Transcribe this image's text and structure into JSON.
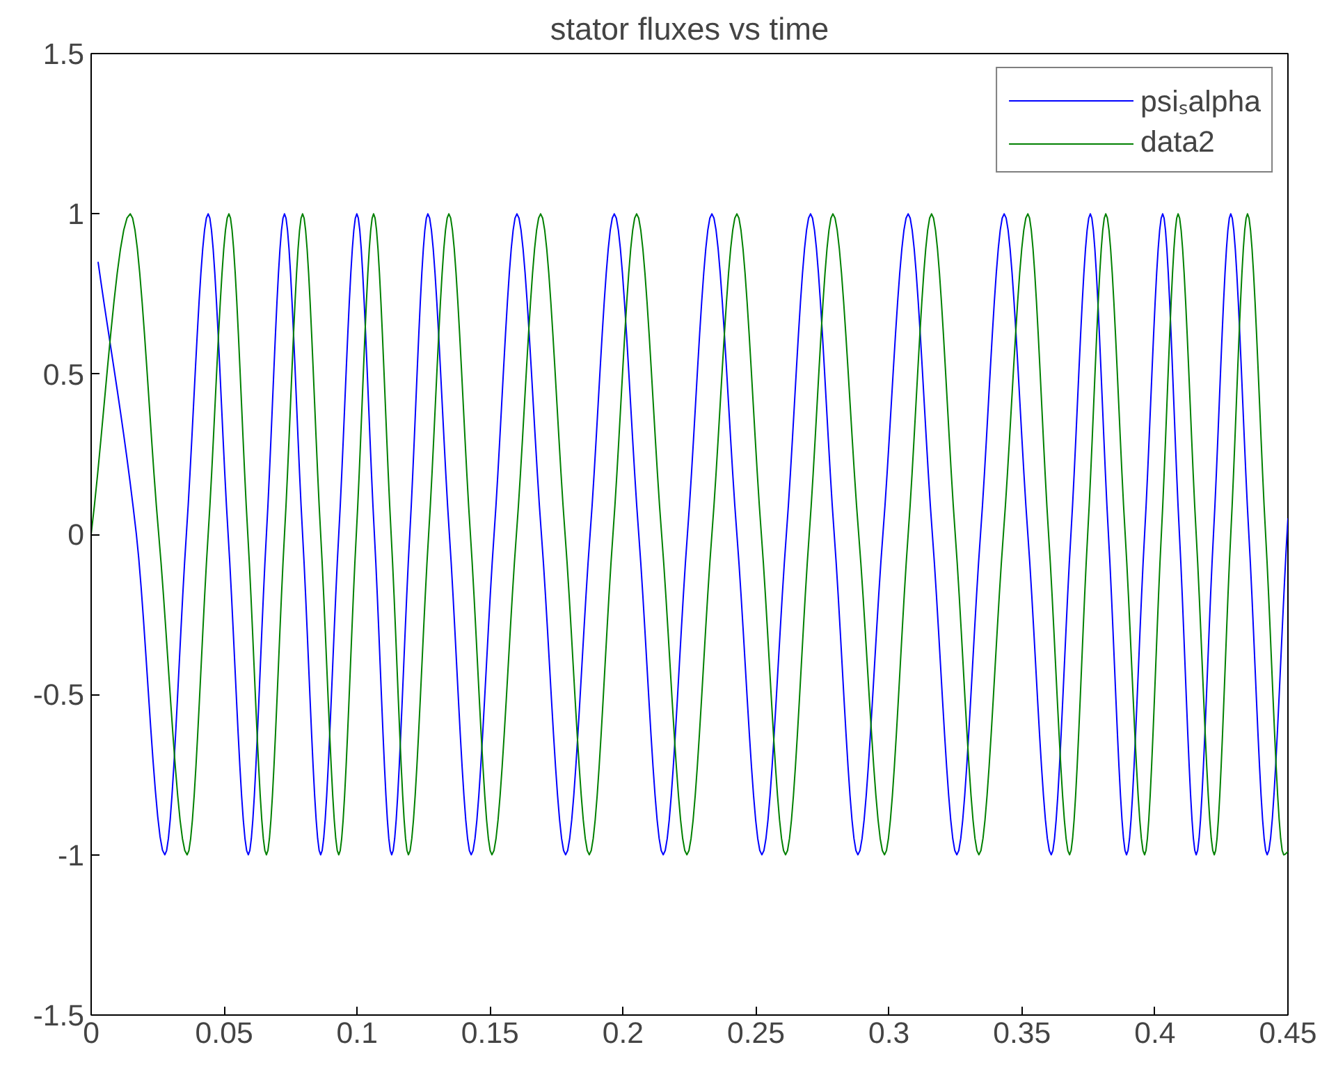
{
  "chart_data": {
    "type": "line",
    "title": "stator fluxes vs time",
    "xlim": [
      0,
      0.45
    ],
    "xticks": [
      0,
      0.05,
      0.1,
      0.15,
      0.2,
      0.25,
      0.3,
      0.35,
      0.4,
      0.45
    ],
    "ylim": [
      -1.5,
      1.5
    ],
    "yticks": [
      -1.5,
      -1,
      -0.5,
      0,
      0.5,
      1,
      1.5
    ],
    "grid": false,
    "legend": "top right",
    "line_style": "solid",
    "marker": "none",
    "series": [
      {
        "name": "psiₛalpha",
        "color": "#0000ff",
        "x": [
          0.0026,
          0.017,
          0.0277,
          0.0358,
          0.044,
          0.0515,
          0.0591,
          0.0659,
          0.0727,
          0.0795,
          0.0863,
          0.0931,
          0.0999,
          0.1065,
          0.113,
          0.1198,
          0.1266,
          0.1347,
          0.1429,
          0.1515,
          0.1601,
          0.1693,
          0.1784,
          0.1876,
          0.1967,
          0.2059,
          0.2151,
          0.2242,
          0.2334,
          0.2428,
          0.2522,
          0.2614,
          0.2705,
          0.2794,
          0.2883,
          0.2977,
          0.3072,
          0.3163,
          0.3255,
          0.3344,
          0.3433,
          0.3522,
          0.361,
          0.3684,
          0.3757,
          0.3825,
          0.3893,
          0.3961,
          0.4029,
          0.4092,
          0.4155,
          0.422,
          0.4285,
          0.4353,
          0.4422,
          0.45
        ],
        "values": [
          0.85,
          0,
          -1,
          0,
          1,
          0,
          -1,
          0,
          1,
          0,
          -1,
          0,
          1,
          0,
          -1,
          0,
          1,
          0,
          -1,
          0,
          1,
          0,
          -1,
          0,
          1,
          0,
          -1,
          0,
          1,
          0,
          -1,
          0,
          1,
          0,
          -1,
          0,
          1,
          0,
          -1,
          0,
          1,
          0,
          -1,
          0,
          1,
          0,
          -1,
          0,
          1,
          0,
          -1,
          0,
          1,
          0,
          -1,
          0.05
        ]
      },
      {
        "name": "data2",
        "color": "#008000",
        "x": [
          0.0,
          0.0147,
          0.0254,
          0.0361,
          0.044,
          0.0518,
          0.0589,
          0.0659,
          0.0727,
          0.0795,
          0.0863,
          0.0931,
          0.0997,
          0.1062,
          0.1128,
          0.1193,
          0.1269,
          0.1345,
          0.1426,
          0.1507,
          0.1599,
          0.169,
          0.1782,
          0.1873,
          0.1962,
          0.2051,
          0.2145,
          0.224,
          0.2334,
          0.2428,
          0.252,
          0.2611,
          0.27,
          0.2789,
          0.2886,
          0.2983,
          0.3072,
          0.316,
          0.3249,
          0.3338,
          0.343,
          0.3522,
          0.36,
          0.3679,
          0.3747,
          0.3815,
          0.3888,
          0.3961,
          0.4024,
          0.4087,
          0.4155,
          0.4223,
          0.4285,
          0.4348,
          0.4416,
          0.4484,
          0.45
        ],
        "values": [
          0,
          1,
          0,
          -1,
          0,
          1,
          0,
          -1,
          0,
          1,
          0,
          -1,
          0,
          1,
          0,
          -1,
          0,
          1,
          0,
          -1,
          0,
          1,
          0,
          -1,
          0,
          1,
          0,
          -1,
          0,
          1,
          0,
          -1,
          0,
          1,
          0,
          -1,
          0,
          1,
          0,
          -1,
          0,
          1,
          0,
          -1,
          0,
          1,
          0,
          -1,
          0,
          1,
          0,
          -1,
          0,
          1,
          0,
          -1,
          -0.99
        ]
      }
    ]
  }
}
